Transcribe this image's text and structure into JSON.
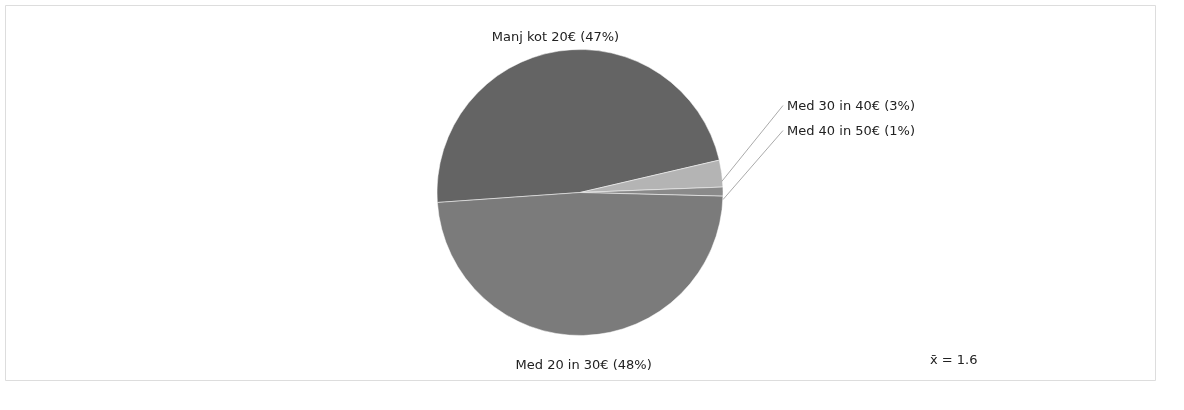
{
  "chart_data": {
    "type": "pie",
    "categories": [
      "Manj kot 20€",
      "Med 30 in 40€",
      "Med 40 in 50€",
      "Med 20 in 30€"
    ],
    "values": [
      47,
      3,
      1,
      48
    ],
    "colors": [
      "#646464",
      "#b4b4b4",
      "#8a8a8a",
      "#7b7b7b"
    ],
    "value_labels": [
      "(47%)",
      "(3%)",
      "(1%)",
      "(48%)"
    ],
    "legend": false,
    "annotations": [
      "x̄ = 1.6"
    ]
  }
}
